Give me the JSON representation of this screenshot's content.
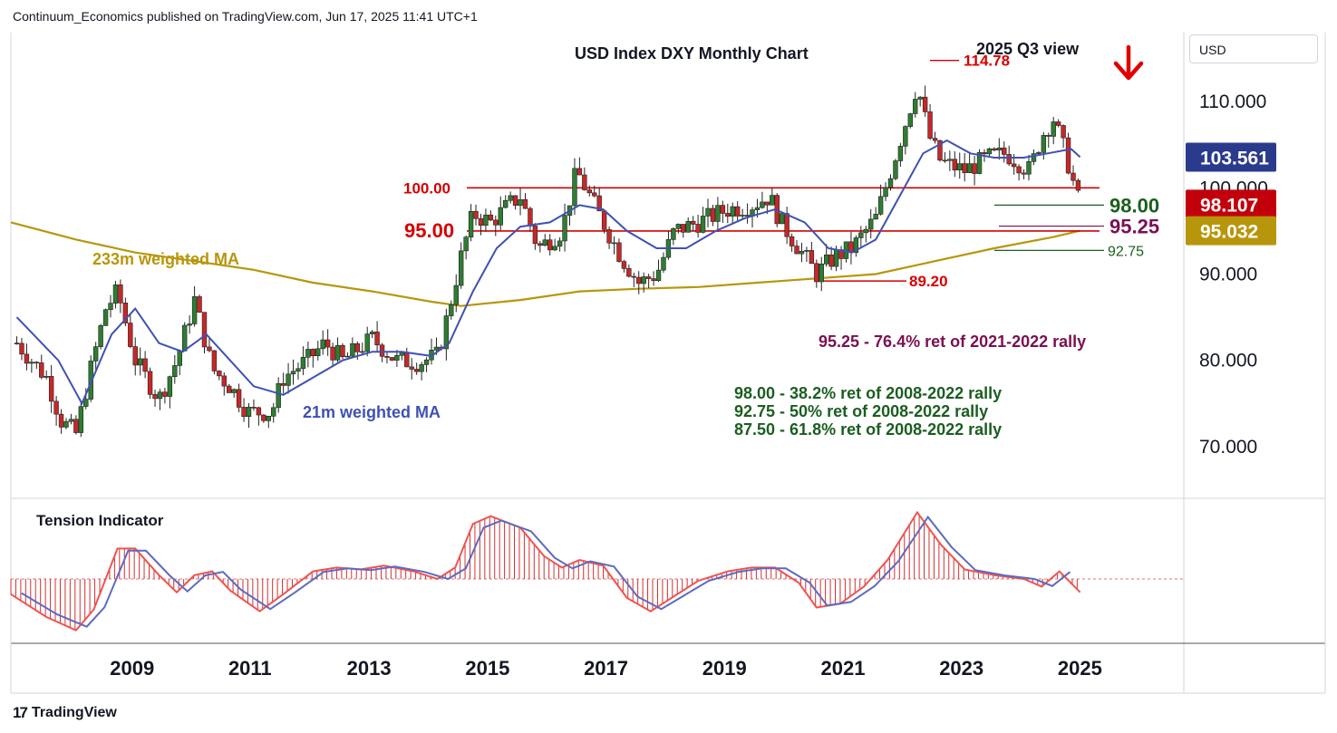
{
  "header": {
    "attribution": "Continuum_Economics published on TradingView.com, Jun 17, 2025 11:41 UTC+1"
  },
  "currency_button": "USD",
  "footer": {
    "logo": "17",
    "brand": "TradingView"
  },
  "colors": {
    "up_candle": "#2e7d32",
    "down_candle": "#c62828",
    "ma21": "#3f51b5",
    "ma233": "#b8960c",
    "resistance": "#d50000",
    "retrace_green": "#1b5e20",
    "retrace_purple": "#7b1050",
    "badge_price": "#c2000b",
    "badge_ma21": "#2a3a8c",
    "badge_ma233": "#b8960c"
  },
  "chart_data": [
    {
      "type": "candlestick",
      "title": "USD Index DXY Monthly Chart",
      "subtitle": "2025 Q3 view",
      "subtitle_icon": "down-arrow-icon",
      "x_ticks": [
        "2009",
        "2011",
        "2013",
        "2015",
        "2017",
        "2019",
        "2021",
        "2023",
        "2025"
      ],
      "y_ticks": [
        "110.000",
        "100.000",
        "90.000",
        "80.000",
        "70.000"
      ],
      "ylim": [
        64,
        118
      ],
      "xlim": [
        2007.4,
        2027.2
      ],
      "grid": false,
      "price_path": [
        [
          2007.5,
          82
        ],
        [
          2008.0,
          78
        ],
        [
          2008.25,
          73
        ],
        [
          2008.5,
          71.5
        ],
        [
          2008.75,
          79
        ],
        [
          2009.0,
          86
        ],
        [
          2009.2,
          88
        ],
        [
          2009.5,
          80
        ],
        [
          2009.9,
          75.5
        ],
        [
          2010.2,
          80
        ],
        [
          2010.5,
          87
        ],
        [
          2010.8,
          79
        ],
        [
          2011.1,
          77
        ],
        [
          2011.4,
          74
        ],
        [
          2011.8,
          74
        ],
        [
          2012.0,
          78
        ],
        [
          2012.4,
          80
        ],
        [
          2012.7,
          82
        ],
        [
          2013.0,
          80
        ],
        [
          2013.5,
          82.5
        ],
        [
          2013.9,
          80
        ],
        [
          2014.3,
          79.8
        ],
        [
          2014.6,
          80.5
        ],
        [
          2014.8,
          86
        ],
        [
          2015.0,
          92
        ],
        [
          2015.2,
          97
        ],
        [
          2015.5,
          96
        ],
        [
          2015.8,
          98
        ],
        [
          2016.0,
          99
        ],
        [
          2016.3,
          93
        ],
        [
          2016.7,
          95
        ],
        [
          2016.95,
          102
        ],
        [
          2017.1,
          100
        ],
        [
          2017.4,
          96
        ],
        [
          2017.7,
          92
        ],
        [
          2018.0,
          89
        ],
        [
          2018.3,
          90
        ],
        [
          2018.6,
          95
        ],
        [
          2019.0,
          96
        ],
        [
          2019.5,
          97.5
        ],
        [
          2019.9,
          98
        ],
        [
          2020.2,
          99
        ],
        [
          2020.4,
          96
        ],
        [
          2020.7,
          93
        ],
        [
          2021.0,
          90
        ],
        [
          2021.3,
          92
        ],
        [
          2021.6,
          93
        ],
        [
          2022.0,
          96.5
        ],
        [
          2022.3,
          103
        ],
        [
          2022.7,
          112
        ],
        [
          2022.9,
          106
        ],
        [
          2023.1,
          103
        ],
        [
          2023.5,
          102
        ],
        [
          2023.9,
          103.5
        ],
        [
          2024.2,
          104
        ],
        [
          2024.6,
          102
        ],
        [
          2024.8,
          106
        ],
        [
          2025.0,
          108
        ],
        [
          2025.2,
          104
        ],
        [
          2025.4,
          99
        ],
        [
          2025.45,
          98.1
        ]
      ],
      "ma21_path": [
        [
          2007.5,
          85
        ],
        [
          2008.2,
          80
        ],
        [
          2008.6,
          75
        ],
        [
          2009.1,
          83
        ],
        [
          2009.5,
          86
        ],
        [
          2009.9,
          82
        ],
        [
          2010.3,
          81
        ],
        [
          2010.7,
          83
        ],
        [
          2011.1,
          80
        ],
        [
          2011.5,
          77
        ],
        [
          2012.0,
          76
        ],
        [
          2012.5,
          78
        ],
        [
          2013.0,
          80
        ],
        [
          2013.5,
          81
        ],
        [
          2014.0,
          81
        ],
        [
          2014.5,
          80.5
        ],
        [
          2014.8,
          82
        ],
        [
          2015.2,
          88
        ],
        [
          2015.6,
          93
        ],
        [
          2016.0,
          95.5
        ],
        [
          2016.5,
          96
        ],
        [
          2017.0,
          98
        ],
        [
          2017.4,
          97.5
        ],
        [
          2017.8,
          95
        ],
        [
          2018.3,
          93
        ],
        [
          2018.8,
          93
        ],
        [
          2019.3,
          95
        ],
        [
          2019.8,
          96.5
        ],
        [
          2020.3,
          97.5
        ],
        [
          2020.8,
          96
        ],
        [
          2021.2,
          93
        ],
        [
          2021.6,
          92.5
        ],
        [
          2022.0,
          94
        ],
        [
          2022.4,
          99
        ],
        [
          2022.8,
          104
        ],
        [
          2023.2,
          105.5
        ],
        [
          2023.6,
          104
        ],
        [
          2024.0,
          103.5
        ],
        [
          2024.5,
          103.5
        ],
        [
          2024.9,
          104
        ],
        [
          2025.3,
          104.5
        ],
        [
          2025.45,
          103.56
        ]
      ],
      "ma233_path": [
        [
          2007.4,
          96
        ],
        [
          2008.5,
          94
        ],
        [
          2009.5,
          92.5
        ],
        [
          2010.5,
          91.5
        ],
        [
          2011.5,
          90.5
        ],
        [
          2012.5,
          89
        ],
        [
          2013.5,
          88
        ],
        [
          2014.5,
          86.8
        ],
        [
          2015.0,
          86.3
        ],
        [
          2016.0,
          87
        ],
        [
          2017.0,
          88
        ],
        [
          2018.0,
          88.3
        ],
        [
          2019.0,
          88.5
        ],
        [
          2020.0,
          89
        ],
        [
          2021.0,
          89.5
        ],
        [
          2022.0,
          90
        ],
        [
          2023.0,
          91.5
        ],
        [
          2024.0,
          93
        ],
        [
          2025.0,
          94.3
        ],
        [
          2025.45,
          95.03
        ]
      ],
      "horizontal_levels": [
        {
          "label": "100.00",
          "value": 100.0,
          "color": "resistance"
        },
        {
          "label": "95.00",
          "value": 95.0,
          "color": "resistance"
        },
        {
          "label": "98.00",
          "value": 98.0,
          "color": "retrace_green"
        },
        {
          "label": "95.25",
          "value": 95.25,
          "color": "retrace_purple"
        },
        {
          "label": "92.75",
          "value": 92.75,
          "color": "retrace_green"
        },
        {
          "label": "114.78",
          "value": 114.78,
          "color": "resistance"
        },
        {
          "label": "89.20",
          "value": 89.2,
          "color": "resistance"
        }
      ],
      "series_labels": {
        "ma21": "21m weighted MA",
        "ma233": "233m weighted MA"
      },
      "price_badges": [
        {
          "value": 103.561,
          "label": "103.561",
          "color": "badge_ma21"
        },
        {
          "value": 98.107,
          "label": "98.107",
          "color": "badge_price"
        },
        {
          "value": 95.032,
          "label": "95.032",
          "color": "badge_ma233"
        }
      ],
      "annotations": {
        "purple": "95.25 - 76.4% ret of 2021-2022 rally",
        "green": [
          "98.00 - 38.2% ret of 2008-2022 rally",
          "92.75 - 50% ret of 2008-2022 rally",
          "87.50 - 61.8% ret of 2008-2022 rally"
        ]
      }
    },
    {
      "type": "histogram",
      "title": "Tension Indicator",
      "oscillator_path": [
        [
          2007.4,
          -0.4
        ],
        [
          2008.0,
          -1.0
        ],
        [
          2008.5,
          -1.35
        ],
        [
          2008.8,
          -0.8
        ],
        [
          2009.2,
          0.8
        ],
        [
          2009.5,
          0.8
        ],
        [
          2009.9,
          0.1
        ],
        [
          2010.2,
          -0.35
        ],
        [
          2010.5,
          0.1
        ],
        [
          2010.8,
          0.2
        ],
        [
          2011.1,
          -0.3
        ],
        [
          2011.6,
          -0.85
        ],
        [
          2012.0,
          -0.4
        ],
        [
          2012.5,
          0.2
        ],
        [
          2012.9,
          0.3
        ],
        [
          2013.3,
          0.25
        ],
        [
          2013.7,
          0.35
        ],
        [
          2014.2,
          0.2
        ],
        [
          2014.6,
          0
        ],
        [
          2014.9,
          0.3
        ],
        [
          2015.2,
          1.45
        ],
        [
          2015.5,
          1.65
        ],
        [
          2016.0,
          1.35
        ],
        [
          2016.4,
          0.6
        ],
        [
          2016.7,
          0.3
        ],
        [
          2017.0,
          0.5
        ],
        [
          2017.4,
          0.35
        ],
        [
          2017.8,
          -0.5
        ],
        [
          2018.2,
          -0.85
        ],
        [
          2018.6,
          -0.45
        ],
        [
          2019.0,
          -0.05
        ],
        [
          2019.5,
          0.2
        ],
        [
          2019.9,
          0.3
        ],
        [
          2020.3,
          0.3
        ],
        [
          2020.7,
          -0.1
        ],
        [
          2021.0,
          -0.75
        ],
        [
          2021.4,
          -0.65
        ],
        [
          2021.8,
          -0.2
        ],
        [
          2022.2,
          0.5
        ],
        [
          2022.7,
          1.75
        ],
        [
          2023.1,
          0.9
        ],
        [
          2023.5,
          0.25
        ],
        [
          2024.0,
          0.1
        ],
        [
          2024.5,
          0
        ],
        [
          2024.8,
          -0.2
        ],
        [
          2025.1,
          0.2
        ],
        [
          2025.45,
          -0.35
        ]
      ],
      "ylim": [
        -1.6,
        2.2
      ]
    }
  ]
}
